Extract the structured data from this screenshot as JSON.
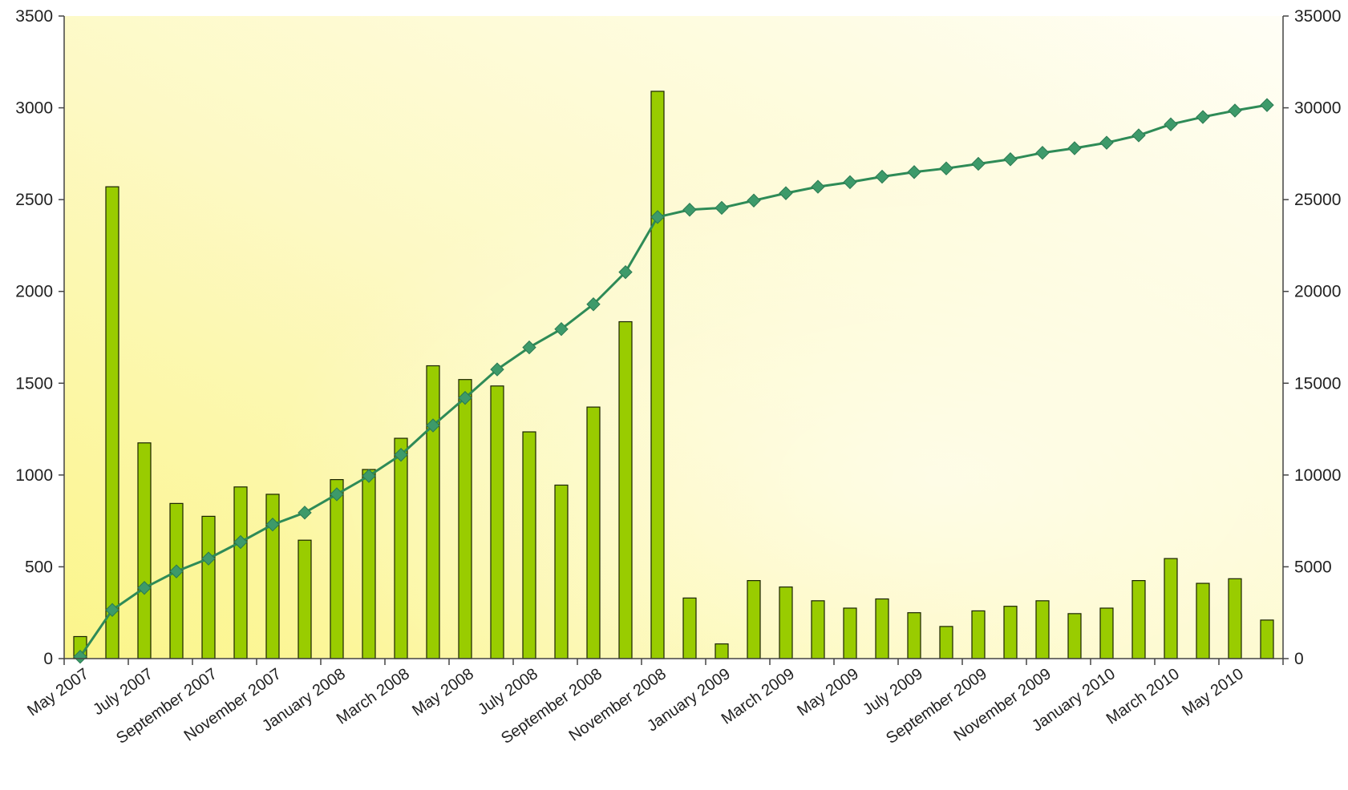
{
  "chart_data": {
    "type": "bar",
    "combo": "bar + cumulative line (secondary axis)",
    "title": "",
    "xlabel": "",
    "ylabel": "",
    "ylabel_right": "",
    "ylim": [
      0,
      3500
    ],
    "ylim_right": [
      0,
      35000
    ],
    "yticks": [
      "0",
      "500",
      "1000",
      "1500",
      "2000",
      "2500",
      "3000",
      "3500"
    ],
    "yticks_right": [
      "0",
      "5000",
      "10000",
      "15000",
      "20000",
      "25000",
      "30000",
      "35000"
    ],
    "x_tick_labels": [
      "May 2007",
      "July 2007",
      "September 2007",
      "November 2007",
      "January 2008",
      "March 2008",
      "May 2008",
      "July 2008",
      "September 2008",
      "November 2008",
      "January 2009",
      "March 2009",
      "May 2009",
      "July 2009",
      "September 2009",
      "November 2009",
      "January 2010",
      "March 2010",
      "May 2010"
    ],
    "n_points": 38,
    "grid": false,
    "legend": "none",
    "series": [
      {
        "axis": "left",
        "kind": "bar",
        "values": [
          120,
          2570,
          1175,
          845,
          775,
          935,
          895,
          645,
          975,
          1030,
          1200,
          1595,
          1520,
          1485,
          1235,
          945,
          1370,
          1835,
          3090,
          330,
          80,
          425,
          390,
          315,
          275,
          325,
          250,
          175,
          260,
          285,
          315,
          245,
          275,
          425,
          545,
          410,
          435,
          210
        ]
      },
      {
        "axis": "right",
        "kind": "line",
        "values": [
          100,
          2650,
          3850,
          4750,
          5450,
          6350,
          7300,
          7950,
          8950,
          9950,
          11100,
          12700,
          14200,
          15750,
          16950,
          17950,
          19300,
          21050,
          24050,
          24450,
          24550,
          24950,
          25350,
          25700,
          25950,
          26250,
          26500,
          26700,
          26950,
          27200,
          27550,
          27800,
          28100,
          28500,
          29100,
          29500,
          29850,
          30150
        ]
      }
    ],
    "colors": {
      "bar_fill": "#99cc00",
      "bar_stroke": "#1a2200",
      "line": "#2e8b57",
      "marker": "#3d9a6a",
      "bg_light": "#fffde8",
      "bg_yellow": "#fbf68a"
    }
  }
}
